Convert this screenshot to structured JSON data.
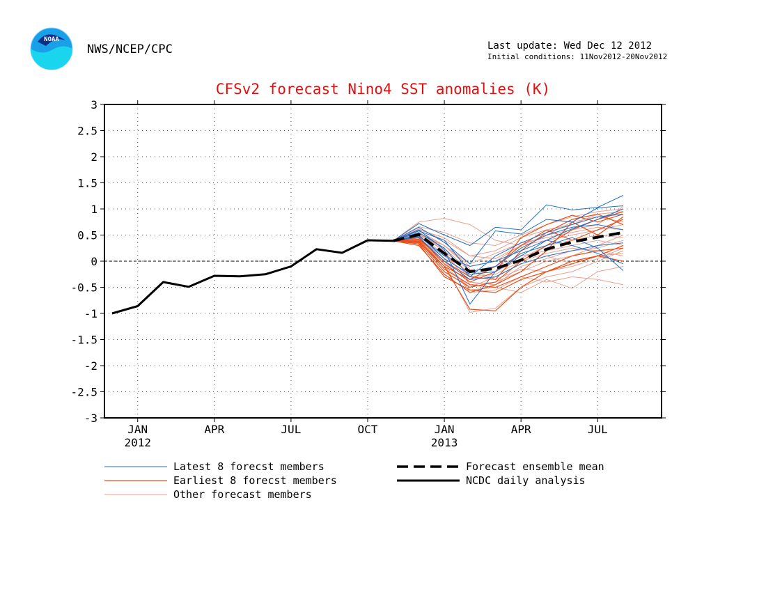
{
  "header": {
    "logo_text": "NOAA",
    "agency": "NWS/NCEP/CPC",
    "last_update": "Last update: Wed Dec 12 2012",
    "initial_conditions": "Initial conditions: 11Nov2012-20Nov2012"
  },
  "chart_data": {
    "type": "line",
    "title": "CFSv2 forecast Nino4 SST anomalies (K)",
    "xlabel": "",
    "ylabel": "",
    "xlim": [
      -0.3,
      21.5
    ],
    "ylim": [
      -3,
      3
    ],
    "y_ticks": [
      -3,
      -2.5,
      -2,
      -1.5,
      -1,
      -0.5,
      0,
      0.5,
      1,
      1.5,
      2,
      2.5,
      3
    ],
    "x_ticks": [
      {
        "x": 1,
        "label": "JAN",
        "year": "2012"
      },
      {
        "x": 4,
        "label": "APR",
        "year": ""
      },
      {
        "x": 7,
        "label": "JUL",
        "year": ""
      },
      {
        "x": 10,
        "label": "OCT",
        "year": ""
      },
      {
        "x": 13,
        "label": "JAN",
        "year": "2013"
      },
      {
        "x": 16,
        "label": "APR",
        "year": ""
      },
      {
        "x": 19,
        "label": "JUL",
        "year": ""
      }
    ],
    "grid": true,
    "zero_line": true,
    "legend_position": "bottom",
    "colors": {
      "latest": "#1f6fc8",
      "earliest": "#e8501a",
      "other": "#e8a090",
      "mean": "#000000",
      "analysis": "#000000",
      "title": "#e01010"
    },
    "legend": [
      {
        "key": "latest",
        "label": "Latest 8 forecst members"
      },
      {
        "key": "earliest",
        "label": "Earliest 8 forecst members"
      },
      {
        "key": "other",
        "label": "Other forecast members"
      },
      {
        "key": "mean",
        "label": "Forecast ensemble mean"
      },
      {
        "key": "analysis",
        "label": "NCDC daily analysis"
      }
    ],
    "ncdc_daily_analysis": {
      "x": [
        0,
        1,
        2,
        3,
        4,
        5,
        6,
        7,
        8,
        9,
        10,
        11
      ],
      "y": [
        -1.0,
        -0.86,
        -0.4,
        -0.49,
        -0.28,
        -0.29,
        -0.25,
        -0.1,
        0.23,
        0.16,
        0.4,
        0.39
      ]
    },
    "forecast_ensemble_mean": {
      "x": [
        11,
        12,
        13,
        14,
        15,
        16,
        17,
        18,
        19,
        20
      ],
      "y": [
        0.39,
        0.51,
        0.15,
        -0.2,
        -0.14,
        0.02,
        0.23,
        0.37,
        0.46,
        0.55
      ]
    },
    "member_x": [
      11,
      12,
      13,
      14,
      15,
      16,
      17,
      18,
      19,
      20
    ],
    "latest_members": [
      [
        0.39,
        0.72,
        0.5,
        0.3,
        0.65,
        0.6,
        1.08,
        0.98,
        1.03,
        1.26
      ],
      [
        0.39,
        0.65,
        0.36,
        -0.05,
        0.58,
        0.52,
        0.8,
        0.75,
        1.02,
        1.06
      ],
      [
        0.39,
        0.6,
        0.22,
        -0.82,
        -0.2,
        0.1,
        0.4,
        0.62,
        0.8,
        1.0
      ],
      [
        0.39,
        0.55,
        0.25,
        -0.3,
        0.1,
        0.35,
        0.55,
        0.7,
        0.85,
        0.9
      ],
      [
        0.39,
        0.5,
        0.05,
        -0.25,
        -0.2,
        0.15,
        0.3,
        0.45,
        0.25,
        -0.18
      ],
      [
        0.39,
        0.48,
        0.1,
        -0.1,
        0.0,
        0.2,
        0.4,
        0.3,
        0.15,
        -0.05
      ],
      [
        0.39,
        0.58,
        0.4,
        -0.2,
        -0.1,
        0.25,
        0.5,
        0.65,
        0.7,
        0.6
      ],
      [
        0.39,
        0.46,
        0.0,
        -0.35,
        -0.3,
        -0.05,
        0.1,
        0.2,
        0.3,
        0.35
      ]
    ],
    "earliest_members": [
      [
        0.39,
        0.4,
        -0.1,
        -0.92,
        -0.95,
        -0.5,
        -0.2,
        -0.05,
        0.1,
        0.3
      ],
      [
        0.39,
        0.35,
        -0.2,
        -0.5,
        -0.4,
        0.0,
        0.3,
        0.6,
        0.8,
        0.95
      ],
      [
        0.39,
        0.45,
        -0.05,
        -0.4,
        -0.2,
        0.45,
        0.7,
        0.88,
        0.75,
        0.9
      ],
      [
        0.39,
        0.3,
        -0.25,
        -0.6,
        -0.45,
        -0.2,
        0.2,
        0.75,
        0.5,
        0.85
      ],
      [
        0.39,
        0.42,
        0.0,
        -0.3,
        -0.35,
        0.2,
        0.55,
        0.8,
        0.9,
        0.7
      ],
      [
        0.39,
        0.38,
        -0.15,
        -0.45,
        -0.5,
        -0.3,
        -0.1,
        0.1,
        0.2,
        0.25
      ],
      [
        0.39,
        0.33,
        -0.3,
        -0.55,
        -0.6,
        -0.35,
        -0.2,
        0.0,
        0.1,
        0.0
      ],
      [
        0.39,
        0.36,
        -0.1,
        -0.35,
        -0.1,
        0.3,
        0.6,
        0.4,
        0.6,
        0.8
      ]
    ],
    "other_members": [
      [
        0.39,
        0.75,
        0.82,
        0.7,
        0.4,
        0.3,
        0.5,
        0.6,
        0.7,
        1.05
      ],
      [
        0.39,
        0.6,
        0.45,
        0.1,
        0.2,
        0.45,
        0.6,
        0.7,
        0.9,
        0.95
      ],
      [
        0.39,
        0.5,
        0.3,
        -0.1,
        0.0,
        0.3,
        0.4,
        0.5,
        0.6,
        0.7
      ],
      [
        0.39,
        0.55,
        0.2,
        -0.45,
        -0.4,
        -0.2,
        0.0,
        0.1,
        0.3,
        0.5
      ],
      [
        0.39,
        0.45,
        0.05,
        -0.6,
        -0.55,
        -0.3,
        -0.4,
        -0.3,
        -0.35,
        -0.45
      ],
      [
        0.39,
        0.4,
        -0.05,
        -0.98,
        -0.9,
        -0.5,
        -0.3,
        -0.2,
        0.0,
        0.2
      ],
      [
        0.39,
        0.52,
        0.25,
        -0.2,
        -0.1,
        0.1,
        0.2,
        0.3,
        0.4,
        0.3
      ],
      [
        0.39,
        0.48,
        0.1,
        -0.3,
        -0.25,
        0.0,
        0.15,
        0.25,
        0.2,
        0.1
      ],
      [
        0.39,
        0.62,
        0.4,
        0.1,
        0.05,
        0.3,
        0.5,
        0.75,
        0.85,
        0.75
      ],
      [
        0.39,
        0.44,
        0.0,
        -0.55,
        -0.5,
        -0.6,
        -0.35,
        -0.52,
        -0.2,
        -0.1
      ],
      [
        0.39,
        0.58,
        0.3,
        -0.05,
        0.15,
        0.35,
        0.45,
        0.55,
        0.65,
        0.6
      ],
      [
        0.39,
        0.46,
        0.15,
        -0.4,
        -0.45,
        -0.1,
        0.05,
        0.2,
        0.25,
        0.4
      ],
      [
        0.39,
        0.42,
        -0.1,
        -0.5,
        -0.3,
        -0.05,
        0.1,
        -0.05,
        0.1,
        0.15
      ],
      [
        0.39,
        0.66,
        0.55,
        0.35,
        0.3,
        0.5,
        0.7,
        0.85,
        0.95,
        1.0
      ],
      [
        0.39,
        0.5,
        0.2,
        -0.25,
        -0.2,
        0.05,
        0.3,
        0.4,
        0.5,
        0.45
      ],
      [
        0.39,
        0.54,
        0.3,
        -0.15,
        -0.35,
        -0.15,
        -0.2,
        -0.1,
        0.05,
        0.25
      ]
    ]
  }
}
